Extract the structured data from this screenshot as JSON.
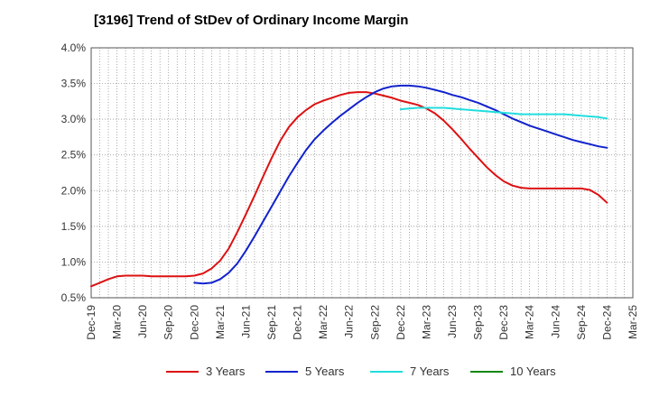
{
  "chart_data": {
    "type": "line",
    "title": "[3196]  Trend of StDev of Ordinary Income Margin",
    "xlabel": "",
    "ylabel": "",
    "ylim": [
      0.5,
      4.0
    ],
    "y_ticks": [
      "0.5%",
      "1.0%",
      "1.5%",
      "2.0%",
      "2.5%",
      "3.0%",
      "3.5%",
      "4.0%"
    ],
    "x_ticks": [
      "Dec-19",
      "Mar-20",
      "Jun-20",
      "Sep-20",
      "Dec-20",
      "Mar-21",
      "Jun-21",
      "Sep-21",
      "Dec-21",
      "Mar-22",
      "Jun-22",
      "Sep-22",
      "Dec-22",
      "Mar-23",
      "Jun-23",
      "Sep-23",
      "Dec-23",
      "Mar-24",
      "Jun-24",
      "Sep-24",
      "Dec-24",
      "Mar-25"
    ],
    "grid": true,
    "legend_position": "bottom",
    "series": [
      {
        "name": "3 Years",
        "color": "#dd1111",
        "x": [
          "Dec-19",
          "Jan-20",
          "Feb-20",
          "Mar-20",
          "Apr-20",
          "May-20",
          "Jun-20",
          "Jul-20",
          "Aug-20",
          "Sep-20",
          "Oct-20",
          "Nov-20",
          "Dec-20",
          "Jan-21",
          "Feb-21",
          "Mar-21",
          "Apr-21",
          "May-21",
          "Jun-21",
          "Jul-21",
          "Aug-21",
          "Sep-21",
          "Oct-21",
          "Nov-21",
          "Dec-21",
          "Jan-22",
          "Feb-22",
          "Mar-22",
          "Apr-22",
          "May-22",
          "Jun-22",
          "Jul-22",
          "Aug-22",
          "Sep-22",
          "Oct-22",
          "Nov-22",
          "Dec-22",
          "Jan-23",
          "Feb-23",
          "Mar-23",
          "Apr-23",
          "May-23",
          "Jun-23",
          "Jul-23",
          "Aug-23",
          "Sep-23",
          "Oct-23",
          "Nov-23",
          "Dec-23",
          "Jan-24",
          "Feb-24",
          "Mar-24",
          "Apr-24",
          "May-24",
          "Jun-24",
          "Jul-24",
          "Aug-24",
          "Sep-24",
          "Oct-24",
          "Nov-24",
          "Dec-24"
        ],
        "y": [
          0.66,
          0.71,
          0.76,
          0.8,
          0.81,
          0.81,
          0.81,
          0.8,
          0.8,
          0.8,
          0.8,
          0.8,
          0.81,
          0.84,
          0.91,
          1.02,
          1.19,
          1.42,
          1.67,
          1.93,
          2.2,
          2.46,
          2.7,
          2.89,
          3.03,
          3.13,
          3.21,
          3.26,
          3.3,
          3.34,
          3.37,
          3.38,
          3.38,
          3.36,
          3.33,
          3.3,
          3.26,
          3.23,
          3.2,
          3.15,
          3.08,
          2.98,
          2.86,
          2.73,
          2.59,
          2.46,
          2.33,
          2.22,
          2.13,
          2.07,
          2.04,
          2.03,
          2.03,
          2.03,
          2.03,
          2.03,
          2.03,
          2.03,
          2.01,
          1.94,
          1.83
        ]
      },
      {
        "name": "5 Years",
        "color": "#1122cc",
        "x": [
          "Dec-20",
          "Jan-21",
          "Feb-21",
          "Mar-21",
          "Apr-21",
          "May-21",
          "Jun-21",
          "Jul-21",
          "Aug-21",
          "Sep-21",
          "Oct-21",
          "Nov-21",
          "Dec-21",
          "Jan-22",
          "Feb-22",
          "Mar-22",
          "Apr-22",
          "May-22",
          "Jun-22",
          "Jul-22",
          "Aug-22",
          "Sep-22",
          "Oct-22",
          "Nov-22",
          "Dec-22",
          "Jan-23",
          "Feb-23",
          "Mar-23",
          "Apr-23",
          "May-23",
          "Jun-23",
          "Jul-23",
          "Aug-23",
          "Sep-23",
          "Oct-23",
          "Nov-23",
          "Dec-23",
          "Jan-24",
          "Feb-24",
          "Mar-24",
          "Apr-24",
          "May-24",
          "Jun-24",
          "Jul-24",
          "Aug-24",
          "Sep-24",
          "Oct-24",
          "Nov-24",
          "Dec-24"
        ],
        "y": [
          0.71,
          0.7,
          0.71,
          0.76,
          0.85,
          0.98,
          1.16,
          1.36,
          1.57,
          1.78,
          1.99,
          2.2,
          2.39,
          2.57,
          2.72,
          2.84,
          2.95,
          3.05,
          3.14,
          3.23,
          3.31,
          3.38,
          3.43,
          3.46,
          3.47,
          3.47,
          3.46,
          3.44,
          3.41,
          3.38,
          3.34,
          3.31,
          3.27,
          3.23,
          3.18,
          3.13,
          3.07,
          3.01,
          2.96,
          2.91,
          2.87,
          2.83,
          2.79,
          2.75,
          2.71,
          2.68,
          2.65,
          2.62,
          2.6
        ]
      },
      {
        "name": "7 Years",
        "color": "#22dddd",
        "x": [
          "Dec-22",
          "Jan-23",
          "Feb-23",
          "Mar-23",
          "Apr-23",
          "May-23",
          "Jun-23",
          "Jul-23",
          "Aug-23",
          "Sep-23",
          "Oct-23",
          "Nov-23",
          "Dec-23",
          "Jan-24",
          "Feb-24",
          "Mar-24",
          "Apr-24",
          "May-24",
          "Jun-24",
          "Jul-24",
          "Aug-24",
          "Sep-24",
          "Oct-24",
          "Nov-24",
          "Dec-24"
        ],
        "y": [
          3.14,
          3.15,
          3.16,
          3.16,
          3.16,
          3.16,
          3.15,
          3.14,
          3.13,
          3.12,
          3.11,
          3.1,
          3.09,
          3.08,
          3.07,
          3.07,
          3.07,
          3.07,
          3.07,
          3.07,
          3.06,
          3.05,
          3.04,
          3.03,
          3.01
        ]
      },
      {
        "name": "10 Years",
        "color": "#118811",
        "x": [],
        "y": []
      }
    ]
  }
}
